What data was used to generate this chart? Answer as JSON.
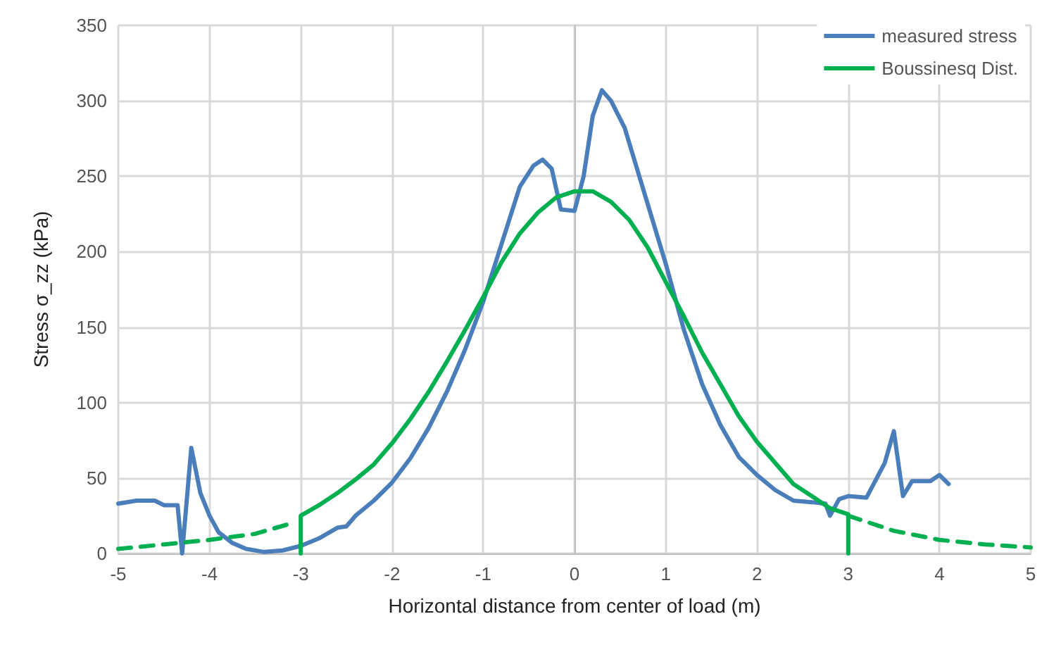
{
  "chart_data": {
    "type": "line",
    "xlabel": "Horizontal distance from center of load (m)",
    "ylabel": "Stress σ_zz (kPa)",
    "xlim": [
      -5,
      5
    ],
    "xticks": [
      -5,
      -4,
      -3,
      -2,
      -1,
      0,
      1,
      2,
      3,
      4,
      5
    ],
    "ylim": [
      0,
      350
    ],
    "yticks": [
      0,
      50,
      100,
      150,
      200,
      250,
      300,
      350
    ],
    "grid": true,
    "legend": "top right",
    "marker": "none",
    "series": [
      {
        "name": "measured stress",
        "color": "#4a7ebb",
        "line_style": "solid",
        "x": [
          -5,
          -4.8,
          -4.6,
          -4.5,
          -4.35,
          -4.3,
          -4.2,
          -4.1,
          -4.0,
          -3.9,
          -3.75,
          -3.6,
          -3.4,
          -3.2,
          -3.0,
          -2.8,
          -2.6,
          -2.5,
          -2.4,
          -2.2,
          -2.0,
          -1.8,
          -1.6,
          -1.4,
          -1.2,
          -1.0,
          -0.8,
          -0.6,
          -0.45,
          -0.35,
          -0.25,
          -0.15,
          0,
          0.1,
          0.2,
          0.3,
          0.4,
          0.55,
          0.8,
          1.0,
          1.2,
          1.4,
          1.6,
          1.8,
          2.0,
          2.2,
          2.4,
          2.6,
          2.75,
          2.8,
          2.9,
          3.0,
          3.2,
          3.4,
          3.5,
          3.6,
          3.7,
          3.9,
          4.0,
          4.1
        ],
        "values": [
          33,
          35,
          35,
          32,
          32,
          0,
          70,
          40,
          25,
          14,
          7,
          3,
          1,
          2,
          5,
          10,
          17,
          18,
          25,
          35,
          47,
          63,
          83,
          107,
          135,
          167,
          205,
          243,
          257,
          261,
          255,
          228,
          227,
          250,
          290,
          307,
          300,
          282,
          232,
          192,
          148,
          112,
          85,
          64,
          52,
          42,
          35,
          34,
          33,
          25,
          36,
          38,
          37,
          60,
          81,
          38,
          48,
          48,
          52,
          46
        ]
      },
      {
        "name": "Boussinesq Dist.",
        "color": "#00b050",
        "line_style": "solid",
        "x": [
          -3,
          -3,
          -2.8,
          -2.6,
          -2.4,
          -2.2,
          -2,
          -1.8,
          -1.6,
          -1.4,
          -1.2,
          -1.0,
          -0.8,
          -0.6,
          -0.4,
          -0.2,
          0,
          0.2,
          0.4,
          0.6,
          0.8,
          1.0,
          1.2,
          1.4,
          1.6,
          1.8,
          2.0,
          2.2,
          2.4,
          2.6,
          2.8,
          3,
          3
        ],
        "values": [
          0,
          25,
          32,
          40,
          49,
          59,
          73,
          89,
          107,
          127,
          148,
          170,
          193,
          212,
          226,
          236,
          240,
          240,
          233,
          221,
          203,
          180,
          157,
          133,
          112,
          91,
          74,
          60,
          46,
          38,
          30,
          26,
          0
        ]
      },
      {
        "color": "#00b050",
        "line_style": "dashed",
        "x": [
          -5,
          -4.5,
          -4,
          -3.5,
          -3.1
        ],
        "values": [
          3,
          6,
          9,
          13,
          20
        ]
      },
      {
        "color": "#00b050",
        "line_style": "dashed",
        "x": [
          3,
          3.5,
          4,
          4.5,
          5
        ],
        "values": [
          25,
          15,
          9,
          6,
          4
        ]
      }
    ]
  }
}
